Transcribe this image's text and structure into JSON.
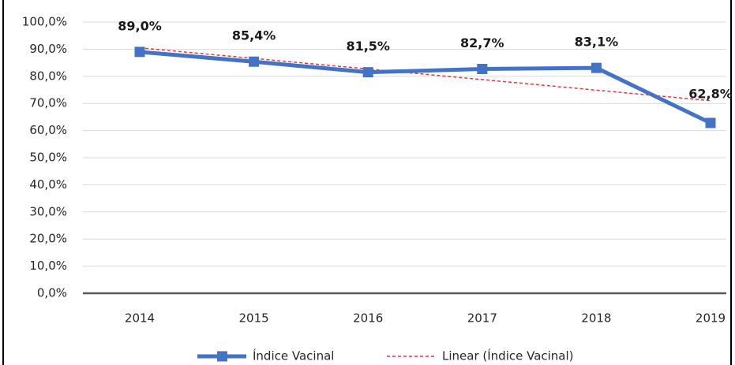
{
  "chart_data": {
    "type": "line",
    "categories": [
      "2014",
      "2015",
      "2016",
      "2017",
      "2018",
      "2019"
    ],
    "series": [
      {
        "name": "Índice Vacinal",
        "color": "#4472c4",
        "marker": "square",
        "dashed": false,
        "values": [
          89.0,
          85.4,
          81.5,
          82.7,
          83.1,
          62.8
        ],
        "value_labels": [
          "89,0%",
          "85,4%",
          "81,5%",
          "82,7%",
          "83,1%",
          "62,8%"
        ]
      },
      {
        "name": "Linear (Índice Vacinal)",
        "color": "#e8373a",
        "dashed": true,
        "values": [
          90.5,
          86.6,
          82.7,
          78.8,
          74.9,
          71.0
        ]
      }
    ],
    "ylim": [
      0,
      100
    ],
    "yticks": [
      {
        "value": 0,
        "label": "0,0%"
      },
      {
        "value": 10,
        "label": "10,0%"
      },
      {
        "value": 20,
        "label": "20,0%"
      },
      {
        "value": 30,
        "label": "30,0%"
      },
      {
        "value": 40,
        "label": "40,0%"
      },
      {
        "value": 50,
        "label": "50,0%"
      },
      {
        "value": 60,
        "label": "60,0%"
      },
      {
        "value": 70,
        "label": "70,0%"
      },
      {
        "value": 80,
        "label": "80,0%"
      },
      {
        "value": 90,
        "label": "90,0%"
      },
      {
        "value": 100,
        "label": "100,0%"
      }
    ],
    "grid": true,
    "legend": "bottom"
  }
}
